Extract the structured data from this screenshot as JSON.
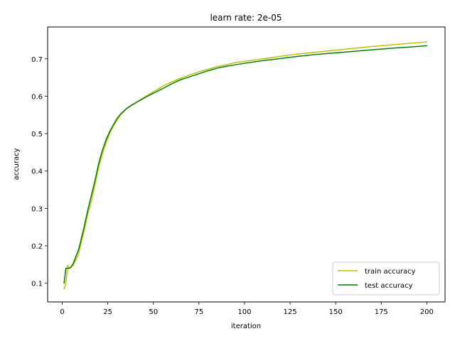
{
  "chart_data": {
    "type": "line",
    "title": "learn rate: 2e-05",
    "xlabel": "iteration",
    "ylabel": "accuracy",
    "xlim": [
      -8,
      210
    ],
    "ylim": [
      0.05,
      0.785
    ],
    "xticks": [
      0,
      25,
      50,
      75,
      100,
      125,
      150,
      175,
      200
    ],
    "yticks": [
      0.1,
      0.2,
      0.3,
      0.4,
      0.5,
      0.6,
      0.7
    ],
    "ytick_labels": [
      "0.1",
      "0.2",
      "0.3",
      "0.4",
      "0.5",
      "0.6",
      "0.7"
    ],
    "grid": false,
    "legend_position": "lower-right",
    "series": [
      {
        "name": "train accuracy",
        "color": "#bfbf00",
        "x": [
          1,
          2,
          3,
          4,
          5,
          6,
          7,
          8,
          9,
          10,
          12,
          14,
          16,
          18,
          20,
          22,
          24,
          26,
          28,
          30,
          32,
          35,
          38,
          42,
          46,
          50,
          55,
          60,
          65,
          70,
          75,
          80,
          85,
          90,
          95,
          100,
          110,
          120,
          130,
          140,
          150,
          160,
          170,
          180,
          190,
          200
        ],
        "y": [
          0.085,
          0.1,
          0.148,
          0.14,
          0.143,
          0.148,
          0.158,
          0.168,
          0.18,
          0.2,
          0.24,
          0.285,
          0.32,
          0.365,
          0.41,
          0.445,
          0.475,
          0.5,
          0.52,
          0.535,
          0.55,
          0.565,
          0.575,
          0.588,
          0.6,
          0.612,
          0.626,
          0.638,
          0.648,
          0.657,
          0.665,
          0.672,
          0.679,
          0.684,
          0.69,
          0.693,
          0.7,
          0.707,
          0.713,
          0.718,
          0.723,
          0.728,
          0.733,
          0.737,
          0.741,
          0.745
        ]
      },
      {
        "name": "test accuracy",
        "color": "#008000",
        "x": [
          1,
          2,
          3,
          4,
          5,
          6,
          7,
          8,
          9,
          10,
          12,
          14,
          16,
          18,
          20,
          22,
          24,
          26,
          28,
          30,
          32,
          35,
          38,
          42,
          46,
          50,
          55,
          60,
          65,
          70,
          75,
          80,
          85,
          90,
          95,
          100,
          110,
          120,
          130,
          140,
          150,
          160,
          170,
          180,
          190,
          200
        ],
        "y": [
          0.1,
          0.14,
          0.14,
          0.14,
          0.145,
          0.152,
          0.165,
          0.178,
          0.19,
          0.21,
          0.25,
          0.295,
          0.335,
          0.375,
          0.42,
          0.455,
          0.483,
          0.505,
          0.523,
          0.54,
          0.552,
          0.566,
          0.576,
          0.587,
          0.598,
          0.608,
          0.62,
          0.633,
          0.644,
          0.652,
          0.66,
          0.668,
          0.675,
          0.68,
          0.684,
          0.688,
          0.695,
          0.701,
          0.707,
          0.712,
          0.716,
          0.72,
          0.724,
          0.728,
          0.731,
          0.735
        ]
      }
    ]
  }
}
